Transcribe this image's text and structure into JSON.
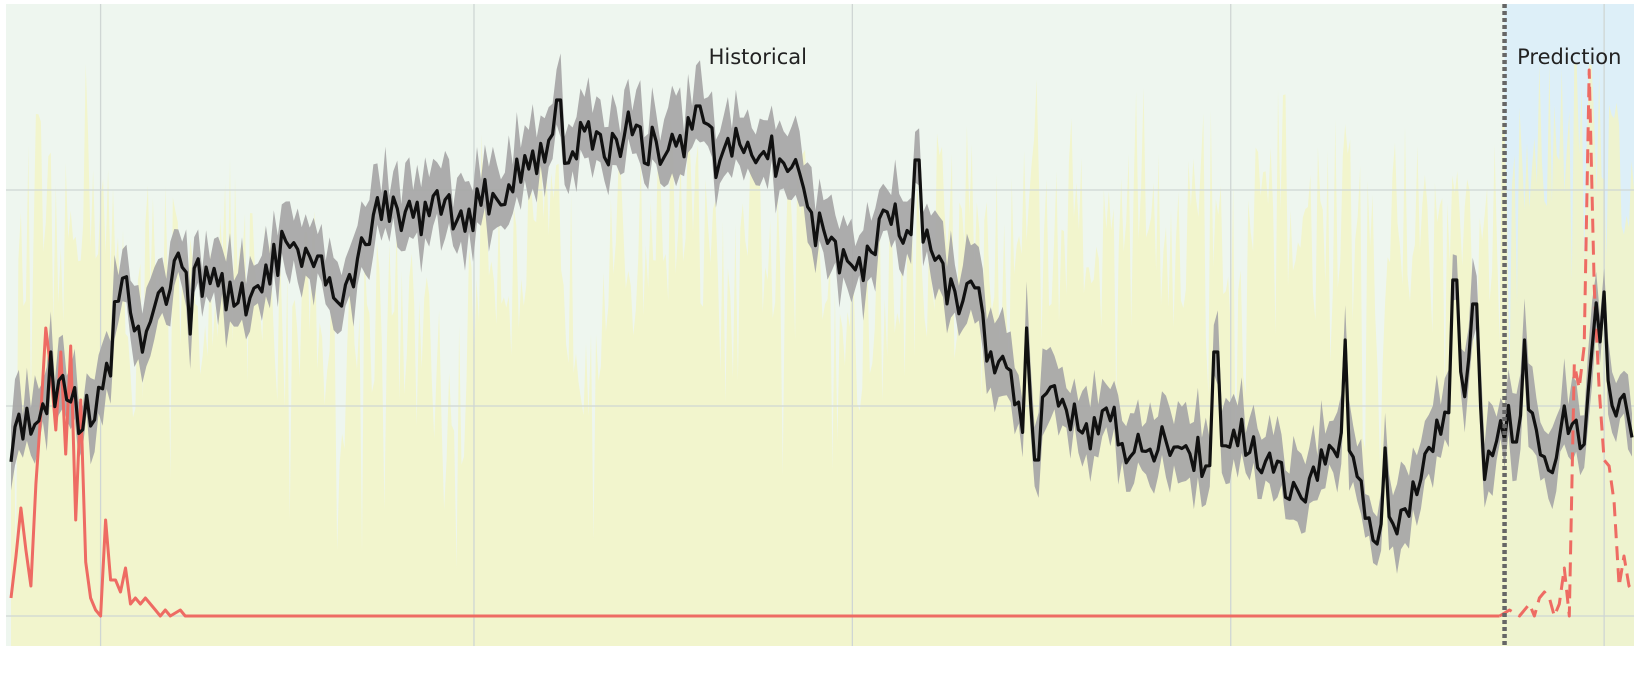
{
  "chart_data": {
    "type": "line",
    "title": "",
    "xlabel": "",
    "ylabel": "",
    "grid": true,
    "legend": "none",
    "regions": [
      {
        "name": "Historical",
        "from": 0,
        "to": 300
      },
      {
        "name": "Prediction",
        "from": 300,
        "to": 326
      }
    ],
    "boundary_x": 300,
    "xlim": [
      -1,
      326
    ],
    "ylim": [
      -0.05,
      1.02
    ],
    "x_gridlines": [
      18,
      93,
      169,
      245,
      320
    ],
    "y_gridlines": [
      0,
      0.35,
      0.71
    ],
    "main_series": {
      "color": "#111111",
      "band_color": "#a8a8a8",
      "band_width": 0.06,
      "keypoints": [
        [
          0,
          0.28
        ],
        [
          6,
          0.36
        ],
        [
          10,
          0.39
        ],
        [
          14,
          0.33
        ],
        [
          18,
          0.37
        ],
        [
          22,
          0.57
        ],
        [
          26,
          0.46
        ],
        [
          30,
          0.52
        ],
        [
          34,
          0.6
        ],
        [
          38,
          0.57
        ],
        [
          42,
          0.54
        ],
        [
          46,
          0.52
        ],
        [
          50,
          0.55
        ],
        [
          55,
          0.62
        ],
        [
          60,
          0.57
        ],
        [
          65,
          0.52
        ],
        [
          70,
          0.6
        ],
        [
          75,
          0.7
        ],
        [
          80,
          0.66
        ],
        [
          86,
          0.68
        ],
        [
          92,
          0.67
        ],
        [
          96,
          0.7
        ],
        [
          100,
          0.71
        ],
        [
          104,
          0.76
        ],
        [
          108,
          0.79
        ],
        [
          112,
          0.78
        ],
        [
          116,
          0.8
        ],
        [
          120,
          0.77
        ],
        [
          124,
          0.79
        ],
        [
          128,
          0.78
        ],
        [
          132,
          0.79
        ],
        [
          136,
          0.8
        ],
        [
          140,
          0.85
        ],
        [
          142,
          0.74
        ],
        [
          146,
          0.79
        ],
        [
          150,
          0.76
        ],
        [
          154,
          0.76
        ],
        [
          158,
          0.75
        ],
        [
          160,
          0.68
        ],
        [
          164,
          0.61
        ],
        [
          168,
          0.58
        ],
        [
          172,
          0.59
        ],
        [
          176,
          0.67
        ],
        [
          180,
          0.63
        ],
        [
          182,
          0.68
        ],
        [
          186,
          0.58
        ],
        [
          190,
          0.53
        ],
        [
          194,
          0.55
        ],
        [
          196,
          0.44
        ],
        [
          200,
          0.39
        ],
        [
          204,
          0.32
        ],
        [
          208,
          0.4
        ],
        [
          212,
          0.35
        ],
        [
          216,
          0.3
        ],
        [
          220,
          0.34
        ],
        [
          224,
          0.29
        ],
        [
          228,
          0.26
        ],
        [
          232,
          0.29
        ],
        [
          236,
          0.3
        ],
        [
          240,
          0.24
        ],
        [
          244,
          0.29
        ],
        [
          248,
          0.3
        ],
        [
          252,
          0.25
        ],
        [
          256,
          0.23
        ],
        [
          258,
          0.18
        ],
        [
          262,
          0.24
        ],
        [
          266,
          0.3
        ],
        [
          270,
          0.24
        ],
        [
          274,
          0.15
        ],
        [
          276,
          0.13
        ],
        [
          280,
          0.18
        ],
        [
          284,
          0.26
        ],
        [
          288,
          0.35
        ],
        [
          292,
          0.39
        ],
        [
          294,
          0.44
        ],
        [
          296,
          0.24
        ],
        [
          298,
          0.31
        ],
        [
          300,
          0.32
        ],
        [
          304,
          0.38
        ],
        [
          306,
          0.29
        ],
        [
          308,
          0.26
        ],
        [
          310,
          0.24
        ],
        [
          312,
          0.32
        ],
        [
          314,
          0.33
        ],
        [
          316,
          0.3
        ],
        [
          318,
          0.52
        ],
        [
          320,
          0.43
        ],
        [
          322,
          0.36
        ],
        [
          324,
          0.34
        ],
        [
          326,
          0.31
        ]
      ],
      "spikes": [
        [
          8,
          0.44
        ],
        [
          20,
          0.4
        ],
        [
          36,
          0.47
        ],
        [
          62,
          0.6
        ],
        [
          85,
          0.7
        ],
        [
          96,
          0.67
        ],
        [
          110,
          0.86
        ],
        [
          124,
          0.84
        ],
        [
          138,
          0.85
        ],
        [
          153,
          0.8
        ],
        [
          182,
          0.76
        ],
        [
          204,
          0.48
        ],
        [
          206,
          0.26
        ],
        [
          242,
          0.44
        ],
        [
          260,
          0.19
        ],
        [
          268,
          0.46
        ],
        [
          276,
          0.28
        ],
        [
          290,
          0.56
        ],
        [
          294,
          0.52
        ],
        [
          302,
          0.29
        ],
        [
          304,
          0.46
        ],
        [
          312,
          0.35
        ],
        [
          320,
          0.54
        ]
      ]
    },
    "background_series": {
      "color": "#f3f4c2",
      "base": -0.05,
      "keypoints": [
        [
          0,
          0.42
        ],
        [
          5,
          0.72
        ],
        [
          10,
          0.55
        ],
        [
          15,
          0.78
        ],
        [
          20,
          0.6
        ],
        [
          25,
          0.5
        ],
        [
          30,
          0.66
        ],
        [
          35,
          0.48
        ],
        [
          40,
          0.58
        ],
        [
          45,
          0.61
        ],
        [
          50,
          0.52
        ],
        [
          55,
          0.49
        ],
        [
          60,
          0.58
        ],
        [
          65,
          0.45
        ],
        [
          70,
          0.49
        ],
        [
          75,
          0.55
        ],
        [
          80,
          0.48
        ],
        [
          85,
          0.4
        ],
        [
          90,
          0.34
        ],
        [
          95,
          0.68
        ],
        [
          100,
          0.59
        ],
        [
          105,
          0.6
        ],
        [
          110,
          0.64
        ],
        [
          115,
          0.47
        ],
        [
          120,
          0.58
        ],
        [
          125,
          0.61
        ],
        [
          130,
          0.66
        ],
        [
          135,
          0.72
        ],
        [
          140,
          0.59
        ],
        [
          145,
          0.48
        ],
        [
          150,
          0.67
        ],
        [
          155,
          0.53
        ],
        [
          160,
          0.71
        ],
        [
          165,
          0.58
        ],
        [
          170,
          0.45
        ],
        [
          175,
          0.59
        ],
        [
          180,
          0.54
        ],
        [
          185,
          0.66
        ],
        [
          190,
          0.72
        ],
        [
          195,
          0.64
        ],
        [
          200,
          0.55
        ],
        [
          205,
          0.8
        ],
        [
          210,
          0.62
        ],
        [
          215,
          0.71
        ],
        [
          220,
          0.58
        ],
        [
          225,
          0.77
        ],
        [
          230,
          0.68
        ],
        [
          235,
          0.61
        ],
        [
          240,
          0.72
        ],
        [
          245,
          0.59
        ],
        [
          250,
          0.64
        ],
        [
          255,
          0.74
        ],
        [
          260,
          0.61
        ],
        [
          265,
          0.7
        ],
        [
          270,
          0.64
        ],
        [
          275,
          0.58
        ],
        [
          280,
          0.69
        ],
        [
          285,
          0.62
        ],
        [
          290,
          0.68
        ],
        [
          295,
          0.55
        ],
        [
          300,
          0.69
        ],
        [
          305,
          0.76
        ],
        [
          310,
          0.85
        ],
        [
          315,
          0.84
        ],
        [
          320,
          0.74
        ],
        [
          326,
          0.79
        ]
      ]
    },
    "red_series": {
      "color": "#ee6b63",
      "historical": [
        [
          0,
          0.03
        ],
        [
          1,
          0.1
        ],
        [
          2,
          0.18
        ],
        [
          3,
          0.11
        ],
        [
          4,
          0.05
        ],
        [
          5,
          0.22
        ],
        [
          6,
          0.34
        ],
        [
          7,
          0.48
        ],
        [
          8,
          0.41
        ],
        [
          9,
          0.31
        ],
        [
          10,
          0.44
        ],
        [
          11,
          0.27
        ],
        [
          12,
          0.45
        ],
        [
          13,
          0.16
        ],
        [
          14,
          0.36
        ],
        [
          15,
          0.09
        ],
        [
          16,
          0.03
        ],
        [
          17,
          0.01
        ],
        [
          18,
          0.0
        ],
        [
          19,
          0.16
        ],
        [
          20,
          0.06
        ],
        [
          21,
          0.06
        ],
        [
          22,
          0.04
        ],
        [
          23,
          0.08
        ],
        [
          24,
          0.02
        ],
        [
          25,
          0.03
        ],
        [
          26,
          0.02
        ],
        [
          27,
          0.03
        ],
        [
          28,
          0.02
        ],
        [
          29,
          0.01
        ],
        [
          30,
          0.0
        ],
        [
          31,
          0.01
        ],
        [
          32,
          0.0
        ],
        [
          34,
          0.01
        ],
        [
          35,
          0.0
        ],
        [
          60,
          0.0
        ],
        [
          100,
          0.0
        ],
        [
          150,
          0.0
        ],
        [
          200,
          0.0
        ],
        [
          250,
          0.0
        ],
        [
          299,
          0.0
        ]
      ],
      "prediction": [
        [
          299,
          0.0
        ],
        [
          301,
          0.01
        ],
        [
          303,
          0.0
        ],
        [
          305,
          0.02
        ],
        [
          306,
          0.0
        ],
        [
          307,
          0.03
        ],
        [
          308,
          0.04
        ],
        [
          309,
          0.03
        ],
        [
          310,
          0.0
        ],
        [
          311,
          0.02
        ],
        [
          312,
          0.08
        ],
        [
          313,
          0.0
        ],
        [
          314,
          0.42
        ],
        [
          315,
          0.38
        ],
        [
          316,
          0.45
        ],
        [
          317,
          0.91
        ],
        [
          318,
          0.55
        ],
        [
          319,
          0.38
        ],
        [
          320,
          0.26
        ],
        [
          321,
          0.25
        ],
        [
          322,
          0.19
        ],
        [
          323,
          0.05
        ],
        [
          324,
          0.1
        ],
        [
          325,
          0.05
        ],
        [
          326,
          0.04
        ]
      ]
    }
  }
}
